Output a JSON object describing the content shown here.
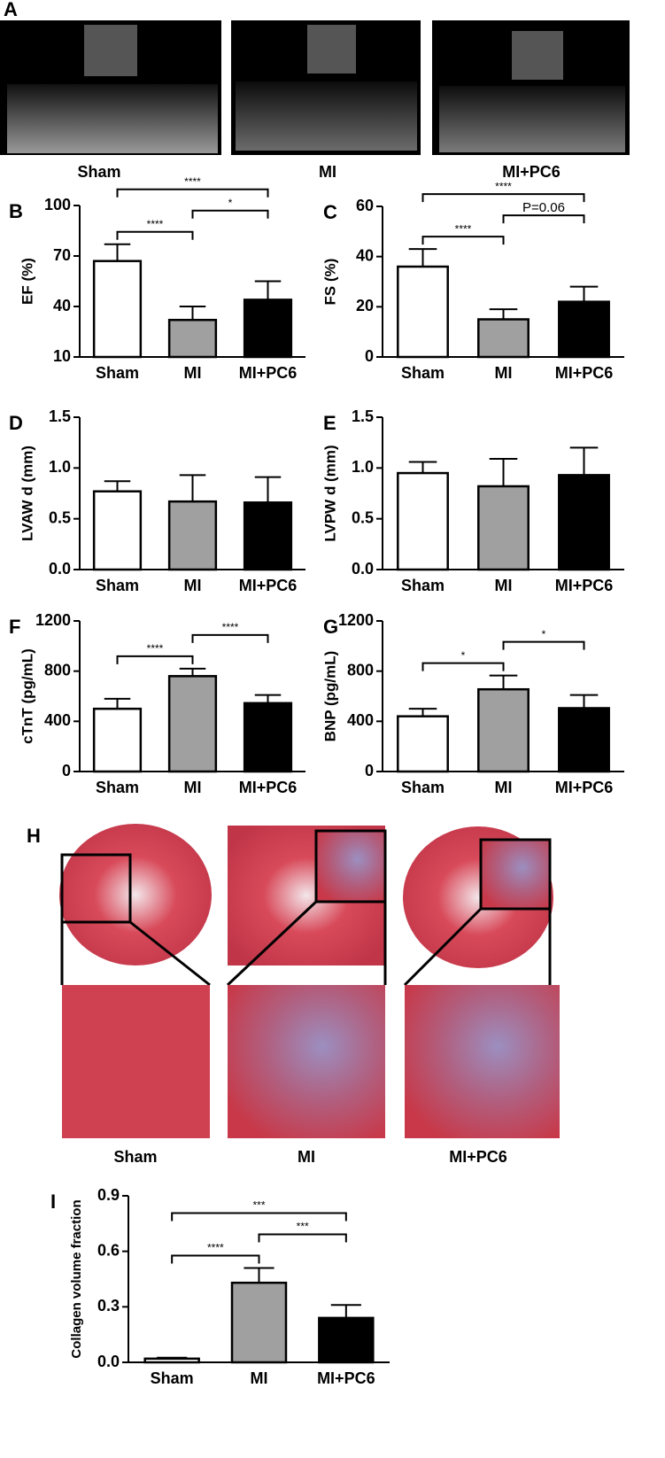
{
  "panel_a": {
    "label": "A",
    "captions": [
      "Sham",
      "MI",
      "MI+PC6"
    ]
  },
  "panel_h": {
    "label": "H",
    "captions": [
      "Sham",
      "MI",
      "MI+PC6"
    ]
  },
  "chart_data": [
    {
      "type": "bar",
      "label": "B",
      "y_label": "EF (%)",
      "categories": [
        "Sham",
        "MI",
        "MI+PC6"
      ],
      "values": [
        67,
        32,
        44
      ],
      "errors": [
        10,
        8,
        11
      ],
      "colors": [
        "#ffffff",
        "#a0a0a0",
        "#000000"
      ],
      "ylim": [
        10,
        100
      ],
      "yticks": [
        10,
        40,
        70,
        100
      ],
      "brackets": [
        {
          "between": [
            "Sham",
            "MI"
          ],
          "text": "****"
        },
        {
          "between": [
            "MI",
            "MI+PC6"
          ],
          "text": "*"
        },
        {
          "between": [
            "Sham",
            "MI+PC6"
          ],
          "text": "****"
        }
      ]
    },
    {
      "type": "bar",
      "label": "C",
      "y_label": "FS (%)",
      "categories": [
        "Sham",
        "MI",
        "MI+PC6"
      ],
      "values": [
        36,
        15,
        22
      ],
      "errors": [
        7,
        4,
        6
      ],
      "colors": [
        "#ffffff",
        "#a0a0a0",
        "#000000"
      ],
      "ylim": [
        0,
        60
      ],
      "yticks": [
        0,
        20,
        40,
        60
      ],
      "brackets": [
        {
          "between": [
            "Sham",
            "MI"
          ],
          "text": "****"
        },
        {
          "between": [
            "MI",
            "MI+PC6"
          ],
          "text": "P=0.06"
        },
        {
          "between": [
            "Sham",
            "MI+PC6"
          ],
          "text": "****"
        }
      ]
    },
    {
      "type": "bar",
      "label": "D",
      "y_label": "LVAW d (mm)",
      "categories": [
        "Sham",
        "MI",
        "MI+PC6"
      ],
      "values": [
        0.77,
        0.67,
        0.66
      ],
      "errors": [
        0.1,
        0.26,
        0.25
      ],
      "colors": [
        "#ffffff",
        "#a0a0a0",
        "#000000"
      ],
      "ylim": [
        0,
        1.5
      ],
      "yticks": [
        {
          "value": 0,
          "label": "0.0"
        },
        0.5,
        {
          "value": 1,
          "label": "1.0"
        },
        1.5
      ],
      "brackets": []
    },
    {
      "type": "bar",
      "label": "E",
      "y_label": "LVPW d (mm)",
      "categories": [
        "Sham",
        "MI",
        "MI+PC6"
      ],
      "values": [
        0.95,
        0.82,
        0.93
      ],
      "errors": [
        0.11,
        0.27,
        0.27
      ],
      "colors": [
        "#ffffff",
        "#a0a0a0",
        "#000000"
      ],
      "ylim": [
        0,
        1.5
      ],
      "yticks": [
        {
          "value": 0,
          "label": "0.0"
        },
        0.5,
        {
          "value": 1,
          "label": "1.0"
        },
        1.5
      ],
      "brackets": []
    },
    {
      "type": "bar",
      "label": "F",
      "y_label": "cTnT (pg/mL)",
      "categories": [
        "Sham",
        "MI",
        "MI+PC6"
      ],
      "values": [
        500,
        760,
        545
      ],
      "errors": [
        80,
        60,
        65
      ],
      "colors": [
        "#ffffff",
        "#a0a0a0",
        "#000000"
      ],
      "ylim": [
        0,
        1200
      ],
      "yticks": [
        0,
        400,
        800,
        1200
      ],
      "brackets": [
        {
          "between": [
            "Sham",
            "MI"
          ],
          "text": "****"
        },
        {
          "between": [
            "MI",
            "MI+PC6"
          ],
          "text": "****"
        }
      ]
    },
    {
      "type": "bar",
      "label": "G",
      "y_label": "BNP (pg/mL)",
      "categories": [
        "Sham",
        "MI",
        "MI+PC6"
      ],
      "values": [
        440,
        655,
        505
      ],
      "errors": [
        60,
        110,
        105
      ],
      "colors": [
        "#ffffff",
        "#a0a0a0",
        "#000000"
      ],
      "ylim": [
        0,
        1200
      ],
      "yticks": [
        0,
        400,
        800,
        1200
      ],
      "brackets": [
        {
          "between": [
            "Sham",
            "MI"
          ],
          "text": "*"
        },
        {
          "between": [
            "MI",
            "MI+PC6"
          ],
          "text": "*"
        }
      ]
    },
    {
      "type": "bar",
      "label": "I",
      "y_label": "Collagen volume fraction",
      "categories": [
        "Sham",
        "MI",
        "MI+PC6"
      ],
      "values": [
        0.02,
        0.43,
        0.24
      ],
      "errors": [
        0.005,
        0.08,
        0.07
      ],
      "colors": [
        "#ffffff",
        "#a0a0a0",
        "#000000"
      ],
      "ylim": [
        0,
        0.9
      ],
      "yticks": [
        {
          "value": 0,
          "label": "0.0"
        },
        0.3,
        0.6,
        0.9
      ],
      "brackets": [
        {
          "between": [
            "Sham",
            "MI"
          ],
          "text": "****"
        },
        {
          "between": [
            "MI",
            "MI+PC6"
          ],
          "text": "***"
        },
        {
          "between": [
            "Sham",
            "MI+PC6"
          ],
          "text": "***"
        }
      ]
    }
  ]
}
